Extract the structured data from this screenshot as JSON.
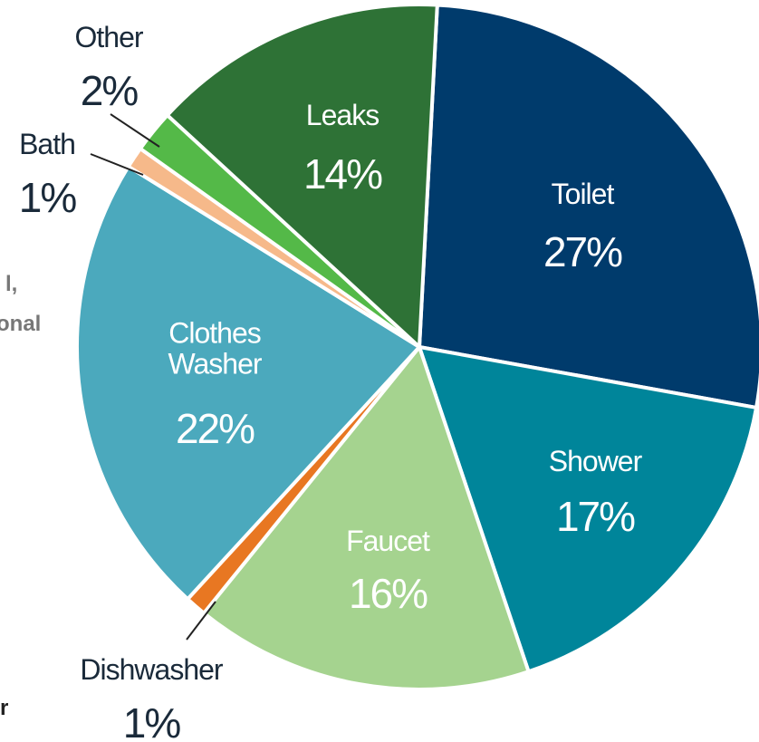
{
  "chart_data": {
    "type": "pie",
    "categories": [
      "Toilet",
      "Shower",
      "Faucet",
      "Dishwasher",
      "Clothes Washer",
      "Bath",
      "Other",
      "Leaks"
    ],
    "values": [
      27,
      17,
      16,
      1,
      22,
      1,
      2,
      14
    ],
    "value_labels": [
      "27%",
      "17%",
      "16%",
      "1%",
      "22%",
      "1%",
      "2%",
      "14%"
    ],
    "colors": [
      "#003b6c",
      "#00859a",
      "#a5d38f",
      "#e87722",
      "#4ba9bd",
      "#f6b98a",
      "#54b948",
      "#2e7236"
    ],
    "annotations": [
      "l,",
      "onal",
      "r"
    ]
  }
}
